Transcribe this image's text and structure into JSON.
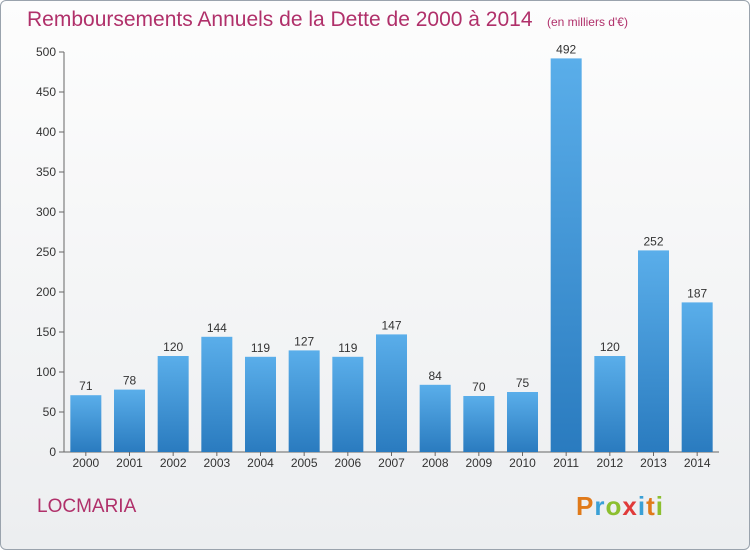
{
  "chart_data": {
    "type": "bar",
    "title": "Remboursements Annuels de la Dette de 2000 à 2014",
    "subtitle": "(en milliers d'€)",
    "categories": [
      "2000",
      "2001",
      "2002",
      "2003",
      "2004",
      "2005",
      "2006",
      "2007",
      "2008",
      "2009",
      "2010",
      "2011",
      "2012",
      "2013",
      "2014"
    ],
    "values": [
      71,
      78,
      120,
      144,
      119,
      127,
      119,
      147,
      84,
      70,
      75,
      492,
      120,
      252,
      187
    ],
    "ylim": [
      0,
      500
    ],
    "yticks": [
      0,
      50,
      100,
      150,
      200,
      250,
      300,
      350,
      400,
      450,
      500
    ],
    "grid": false,
    "bar_color_top": "#5aaeea",
    "bar_color_bottom": "#2a7bbf"
  },
  "footer": {
    "town": "LOCMARIA",
    "logo_text": "Proxiti"
  }
}
